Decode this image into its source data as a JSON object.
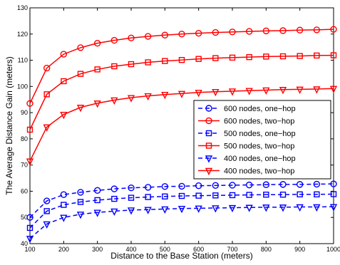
{
  "chart_data": {
    "type": "line",
    "title": "",
    "xlabel": "Distance to the Base Station (meters)",
    "ylabel": "The Average Distance Gain (meters)",
    "xlim": [
      100,
      1000
    ],
    "ylim": [
      40,
      130
    ],
    "xticks": [
      100,
      200,
      300,
      400,
      500,
      600,
      700,
      800,
      900,
      1000
    ],
    "yticks": [
      40,
      50,
      60,
      70,
      80,
      90,
      100,
      110,
      120,
      130
    ],
    "grid": false,
    "legend_position": "center-right",
    "x": [
      100,
      150,
      200,
      250,
      300,
      350,
      400,
      450,
      500,
      550,
      600,
      650,
      700,
      750,
      800,
      850,
      900,
      950,
      1000
    ],
    "series": [
      {
        "name": "600 nodes, one−hop",
        "color": "#0000ff",
        "dash": "dashed",
        "marker": "circle",
        "values": [
          50.0,
          56.3,
          58.7,
          59.6,
          60.3,
          60.9,
          61.3,
          61.5,
          61.8,
          61.9,
          62.1,
          62.2,
          62.3,
          62.4,
          62.5,
          62.6,
          62.6,
          62.7,
          62.8
        ]
      },
      {
        "name": "600 nodes, two−hop",
        "color": "#ff0000",
        "dash": "solid",
        "marker": "circle",
        "values": [
          93.5,
          107.0,
          112.3,
          114.8,
          116.5,
          117.6,
          118.5,
          119.1,
          119.6,
          120.0,
          120.3,
          120.6,
          120.8,
          121.0,
          121.2,
          121.3,
          121.5,
          121.6,
          121.8
        ]
      },
      {
        "name": "500 nodes, one−hop",
        "color": "#0000ff",
        "dash": "dashed",
        "marker": "square",
        "values": [
          46.0,
          52.4,
          54.8,
          55.9,
          56.6,
          57.1,
          57.5,
          57.8,
          58.0,
          58.2,
          58.3,
          58.4,
          58.5,
          58.6,
          58.7,
          58.7,
          58.8,
          58.8,
          58.9
        ]
      },
      {
        "name": "500 nodes, two−hop",
        "color": "#ff0000",
        "dash": "solid",
        "marker": "square",
        "values": [
          83.5,
          97.0,
          102.0,
          104.8,
          106.5,
          107.7,
          108.5,
          109.2,
          109.7,
          110.1,
          110.5,
          110.8,
          111.0,
          111.2,
          111.4,
          111.5,
          111.6,
          111.8,
          111.9
        ]
      },
      {
        "name": "400 nodes, one−hop",
        "color": "#0000ff",
        "dash": "dashed",
        "marker": "triangle-down",
        "values": [
          42.0,
          47.5,
          50.0,
          51.2,
          51.9,
          52.4,
          52.8,
          53.0,
          53.2,
          53.4,
          53.5,
          53.6,
          53.7,
          53.8,
          53.9,
          53.9,
          54.0,
          54.0,
          54.1
        ]
      },
      {
        "name": "400 nodes, two−hop",
        "color": "#ff0000",
        "dash": "solid",
        "marker": "triangle-down",
        "values": [
          71.5,
          84.5,
          89.3,
          92.0,
          93.6,
          94.8,
          95.7,
          96.4,
          96.9,
          97.3,
          97.7,
          98.0,
          98.2,
          98.4,
          98.6,
          98.8,
          98.9,
          99.0,
          99.2
        ]
      }
    ]
  }
}
